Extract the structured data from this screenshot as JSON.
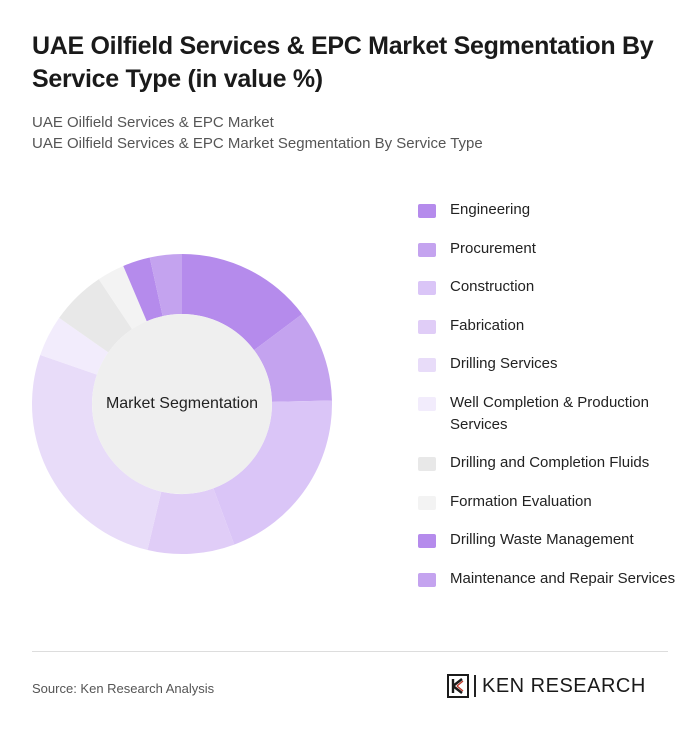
{
  "header": {
    "title": "UAE Oilfield Services & EPC Market Segmentation By Service Type (in value %)",
    "subtitle_1": "UAE Oilfield Services & EPC Market",
    "subtitle_2": "UAE Oilfield Services & EPC Market Segmentation By Service Type"
  },
  "chart_data": {
    "type": "pie",
    "variant": "donut",
    "center_label": "Market Segmentation",
    "legend_position": "right",
    "categories": [
      "Engineering",
      "Procurement",
      "Construction",
      "Fabrication",
      "Drilling Services",
      "Well Completion & Production Services",
      "Drilling and Completion Fluids",
      "Formation Evaluation",
      "Drilling Waste Management",
      "Maintenance and Repair Services"
    ],
    "values": [
      15,
      10,
      20,
      9.5,
      27,
      4.5,
      6,
      3,
      3,
      3.5
    ],
    "colors": [
      "#b58bec",
      "#c4a3ef",
      "#dac5f7",
      "#e0cdf7",
      "#e8dcf9",
      "#f2ecfc",
      "#e8e8e8",
      "#f3f3f3",
      "#b58bec",
      "#c4a3ef"
    ],
    "center_color": "#efefef"
  },
  "footer": {
    "source": "Source: Ken Research Analysis",
    "brand": "KEN RESEARCH"
  }
}
